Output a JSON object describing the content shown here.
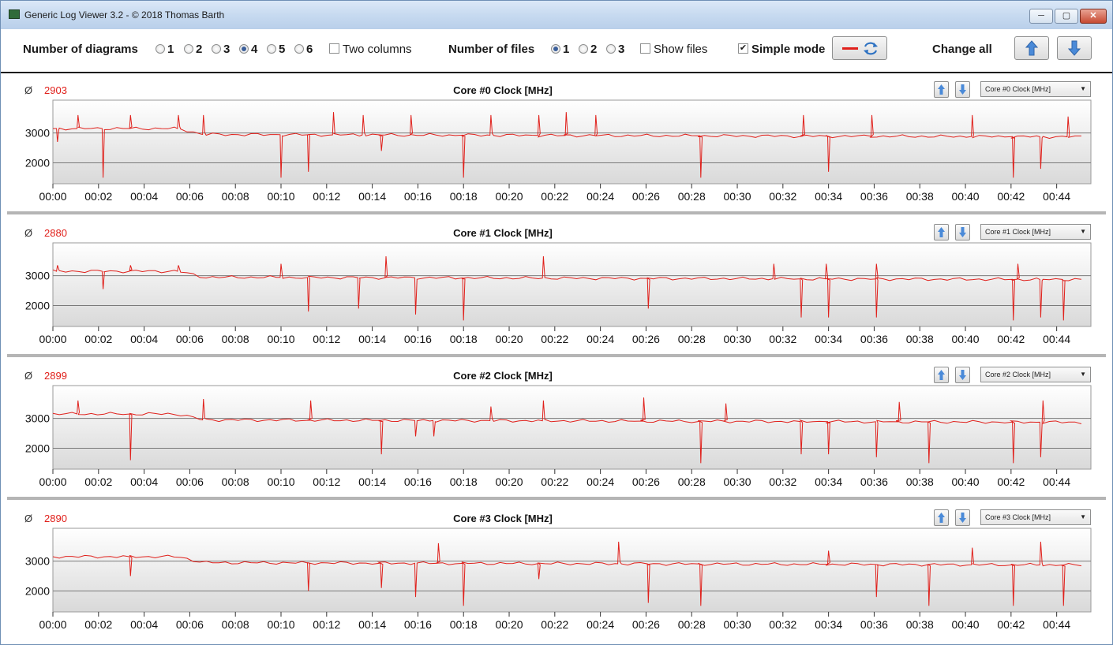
{
  "window": {
    "title": "Generic Log Viewer 3.2 - © 2018 Thomas Barth",
    "controls": [
      "─",
      "▢",
      "✕"
    ]
  },
  "toolbar": {
    "diagrams_label": "Number of diagrams",
    "diagram_options": [
      "1",
      "2",
      "3",
      "4",
      "5",
      "6"
    ],
    "diagram_selected": "4",
    "two_columns_label": "Two columns",
    "two_columns_checked": false,
    "files_label": "Number of files",
    "file_options": [
      "1",
      "2",
      "3"
    ],
    "file_selected": "1",
    "show_files_label": "Show files",
    "show_files_checked": false,
    "simple_mode_label": "Simple mode",
    "simple_mode_checked": true,
    "change_all_label": "Change all",
    "line_color": "#e0201b",
    "icons": [
      "red-line-icon",
      "refresh-icon",
      "arrow-up-icon",
      "arrow-down-icon"
    ]
  },
  "colors": {
    "series": "#e0201b",
    "average": "#e0201b",
    "accent_blue": "#3a78c9"
  },
  "x_ticks": [
    "00:00",
    "00:02",
    "00:04",
    "00:06",
    "00:08",
    "00:10",
    "00:12",
    "00:14",
    "00:16",
    "00:18",
    "00:20",
    "00:22",
    "00:24",
    "00:26",
    "00:28",
    "00:30",
    "00:32",
    "00:34",
    "00:36",
    "00:38",
    "00:40",
    "00:42",
    "00:44"
  ],
  "chart_data": [
    {
      "type": "line",
      "title": "Core #0 Clock [MHz]",
      "average": "2903",
      "selector": "Core #0 Clock [MHz]",
      "y_ticks": [
        "3000",
        "2000"
      ],
      "ylim": [
        1300,
        4100
      ],
      "xlim_minutes": [
        0,
        45.5
      ],
      "grid": true,
      "base": [
        [
          0,
          3150
        ],
        [
          5.5,
          3150
        ],
        [
          6.6,
          2950
        ],
        [
          45.3,
          2870
        ]
      ],
      "spikes_up": [
        [
          1.1,
          3600
        ],
        [
          3.4,
          3600
        ],
        [
          5.5,
          3600
        ],
        [
          6.6,
          3600
        ],
        [
          12.3,
          3700
        ],
        [
          13.6,
          3600
        ],
        [
          15.7,
          3600
        ],
        [
          19.2,
          3600
        ],
        [
          21.3,
          3600
        ],
        [
          22.5,
          3700
        ],
        [
          23.8,
          3600
        ],
        [
          32.9,
          3600
        ],
        [
          35.9,
          3600
        ],
        [
          40.3,
          3600
        ],
        [
          44.5,
          3550
        ]
      ],
      "spikes_down": [
        [
          0.2,
          2700
        ],
        [
          2.2,
          1500
        ],
        [
          10.0,
          1500
        ],
        [
          11.2,
          1700
        ],
        [
          14.4,
          2400
        ],
        [
          18.0,
          1500
        ],
        [
          28.4,
          1500
        ],
        [
          34.0,
          1700
        ],
        [
          42.1,
          1500
        ],
        [
          43.3,
          1800
        ]
      ]
    },
    {
      "type": "line",
      "title": "Core #1 Clock [MHz]",
      "average": "2880",
      "selector": "Core #1 Clock [MHz]",
      "y_ticks": [
        "3000",
        "2000"
      ],
      "ylim": [
        1300,
        4100
      ],
      "xlim_minutes": [
        0,
        45.5
      ],
      "grid": true,
      "base": [
        [
          0,
          3150
        ],
        [
          5.5,
          3150
        ],
        [
          6.6,
          2950
        ],
        [
          45.3,
          2870
        ]
      ],
      "spikes_up": [
        [
          0.2,
          3350
        ],
        [
          3.4,
          3350
        ],
        [
          5.5,
          3350
        ],
        [
          10.0,
          3400
        ],
        [
          14.6,
          3650
        ],
        [
          21.5,
          3650
        ],
        [
          31.6,
          3400
        ],
        [
          33.9,
          3400
        ],
        [
          36.1,
          3400
        ],
        [
          42.3,
          3400
        ]
      ],
      "spikes_down": [
        [
          2.2,
          2550
        ],
        [
          11.2,
          1800
        ],
        [
          13.4,
          1900
        ],
        [
          15.9,
          1700
        ],
        [
          18.0,
          1500
        ],
        [
          26.1,
          1900
        ],
        [
          32.8,
          1600
        ],
        [
          34.0,
          1600
        ],
        [
          36.1,
          1600
        ],
        [
          42.1,
          1500
        ],
        [
          43.3,
          1600
        ],
        [
          44.3,
          1500
        ]
      ]
    },
    {
      "type": "line",
      "title": "Core #2 Clock [MHz]",
      "average": "2899",
      "selector": "Core #2 Clock [MHz]",
      "y_ticks": [
        "3000",
        "2000"
      ],
      "ylim": [
        1300,
        4100
      ],
      "xlim_minutes": [
        0,
        45.5
      ],
      "grid": true,
      "base": [
        [
          0,
          3150
        ],
        [
          5.5,
          3150
        ],
        [
          6.6,
          2950
        ],
        [
          45.3,
          2870
        ]
      ],
      "spikes_up": [
        [
          1.1,
          3600
        ],
        [
          6.6,
          3650
        ],
        [
          11.3,
          3600
        ],
        [
          19.2,
          3400
        ],
        [
          21.5,
          3600
        ],
        [
          25.9,
          3700
        ],
        [
          29.5,
          3500
        ],
        [
          37.1,
          3550
        ],
        [
          43.4,
          3600
        ]
      ],
      "spikes_down": [
        [
          3.4,
          1600
        ],
        [
          14.4,
          1800
        ],
        [
          15.9,
          2400
        ],
        [
          16.7,
          2400
        ],
        [
          28.4,
          1500
        ],
        [
          32.8,
          1800
        ],
        [
          34.0,
          1800
        ],
        [
          36.1,
          1700
        ],
        [
          38.4,
          1500
        ],
        [
          42.1,
          1500
        ],
        [
          43.3,
          1700
        ]
      ]
    },
    {
      "type": "line",
      "title": "Core #3 Clock [MHz]",
      "average": "2890",
      "selector": "Core #3 Clock [MHz]",
      "y_ticks": [
        "3000",
        "2000"
      ],
      "ylim": [
        1300,
        4100
      ],
      "xlim_minutes": [
        0,
        45.5
      ],
      "grid": true,
      "base": [
        [
          0,
          3150
        ],
        [
          5.5,
          3150
        ],
        [
          6.6,
          2950
        ],
        [
          45.3,
          2870
        ]
      ],
      "spikes_up": [
        [
          16.9,
          3600
        ],
        [
          24.8,
          3650
        ],
        [
          34.0,
          3350
        ],
        [
          40.3,
          3450
        ],
        [
          43.3,
          3650
        ]
      ],
      "spikes_down": [
        [
          3.4,
          2500
        ],
        [
          11.2,
          2000
        ],
        [
          14.4,
          2100
        ],
        [
          15.9,
          1800
        ],
        [
          18.0,
          1500
        ],
        [
          21.3,
          2400
        ],
        [
          26.1,
          1600
        ],
        [
          28.4,
          1500
        ],
        [
          36.1,
          1800
        ],
        [
          38.4,
          1500
        ],
        [
          42.1,
          1500
        ],
        [
          44.3,
          1500
        ]
      ]
    }
  ]
}
